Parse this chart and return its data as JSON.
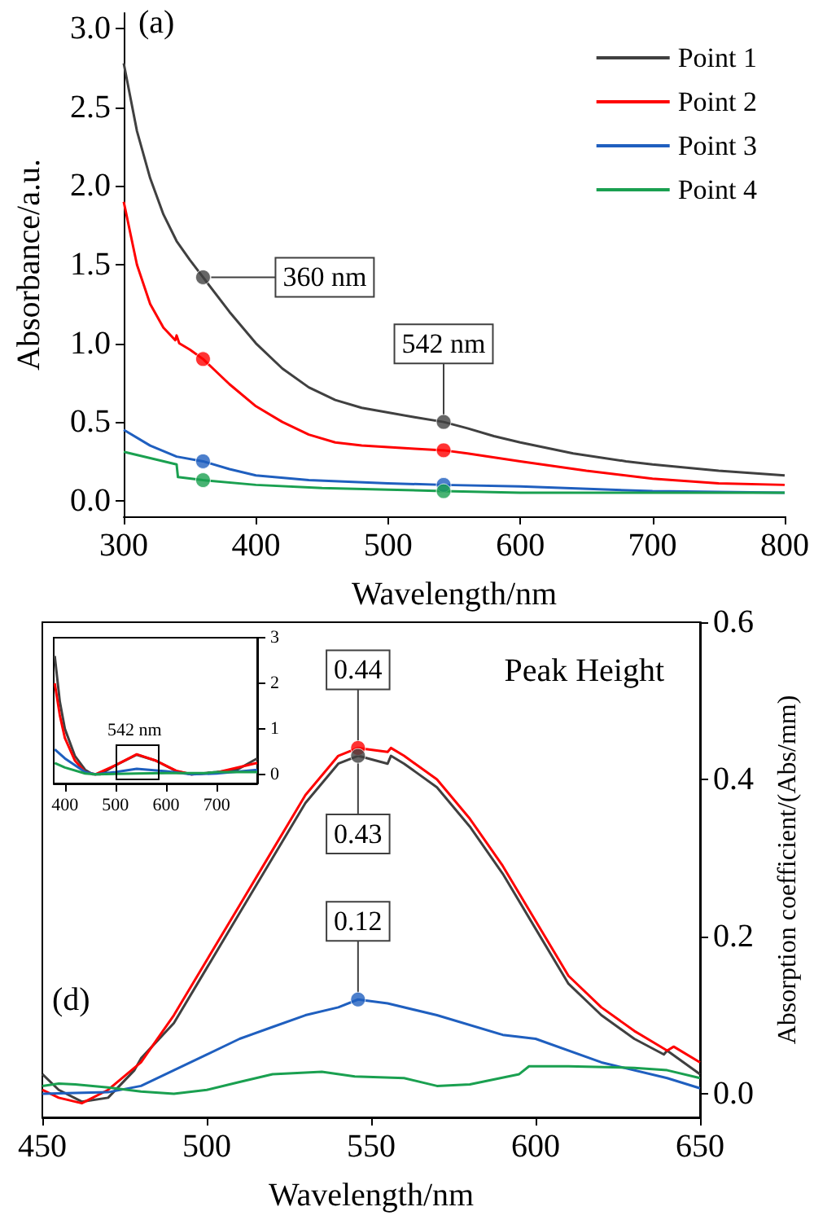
{
  "chart_data": [
    {
      "type": "line",
      "xlabel": "Wavelength/nm",
      "ylabel": "Absorbance/a.u.",
      "xlim": [
        300,
        800
      ],
      "ylim": [
        -0.1,
        3.1
      ],
      "xticks": [
        300,
        400,
        500,
        600,
        700,
        800
      ],
      "yticks": [
        {
          "value": 0,
          "label": "0.0"
        },
        0.5,
        {
          "value": 1,
          "label": "1.0"
        },
        1.5,
        {
          "value": 2,
          "label": "2.0"
        },
        2.5,
        {
          "value": 3,
          "label": "3.0"
        }
      ],
      "legend": "top right",
      "annotations": [
        "(a)",
        {
          "text": "360 nm",
          "x": 360,
          "y": 1.42
        },
        {
          "text": "542 nm",
          "x": 542,
          "y": 0.5
        }
      ],
      "series": [
        {
          "name": "Point 1",
          "color": "#404040",
          "x": [
            300,
            310,
            320,
            330,
            340,
            350,
            360,
            380,
            400,
            420,
            440,
            460,
            480,
            500,
            520,
            542,
            560,
            580,
            600,
            640,
            680,
            700,
            750,
            800
          ],
          "values": [
            2.78,
            2.35,
            2.05,
            1.82,
            1.65,
            1.53,
            1.42,
            1.2,
            1.0,
            0.84,
            0.72,
            0.64,
            0.59,
            0.56,
            0.53,
            0.5,
            0.46,
            0.41,
            0.37,
            0.3,
            0.25,
            0.23,
            0.19,
            0.16
          ]
        },
        {
          "name": "Point 2",
          "color": "#ff0000",
          "x": [
            300,
            310,
            320,
            330,
            339,
            340,
            342,
            350,
            360,
            380,
            400,
            420,
            440,
            460,
            480,
            500,
            520,
            542,
            560,
            600,
            650,
            700,
            750,
            800
          ],
          "values": [
            1.9,
            1.5,
            1.25,
            1.1,
            1.02,
            1.05,
            1.0,
            0.96,
            0.9,
            0.74,
            0.6,
            0.5,
            0.42,
            0.37,
            0.35,
            0.34,
            0.33,
            0.32,
            0.3,
            0.25,
            0.19,
            0.14,
            0.11,
            0.1
          ]
        },
        {
          "name": "Point 3",
          "color": "#1f5fbf",
          "x": [
            300,
            320,
            340,
            360,
            380,
            400,
            440,
            500,
            542,
            600,
            700,
            800
          ],
          "values": [
            0.45,
            0.35,
            0.28,
            0.25,
            0.2,
            0.16,
            0.13,
            0.11,
            0.1,
            0.09,
            0.06,
            0.05
          ]
        },
        {
          "name": "Point 4",
          "color": "#1aa050",
          "x": [
            300,
            320,
            340,
            341,
            360,
            400,
            450,
            500,
            542,
            600,
            700,
            800
          ],
          "values": [
            0.31,
            0.27,
            0.23,
            0.15,
            0.13,
            0.1,
            0.08,
            0.07,
            0.06,
            0.05,
            0.05,
            0.05
          ]
        },
        {
          "type": "scatter",
          "color": "#404040",
          "x": [
            360,
            542
          ],
          "values": [
            1.42,
            0.5
          ]
        },
        {
          "type": "scatter",
          "color": "#ff0000",
          "x": [
            360,
            542
          ],
          "values": [
            0.9,
            0.32
          ]
        },
        {
          "type": "scatter",
          "color": "#1f5fbf",
          "x": [
            360,
            542
          ],
          "values": [
            0.25,
            0.1
          ]
        },
        {
          "type": "scatter",
          "color": "#1aa050",
          "x": [
            360,
            542
          ],
          "values": [
            0.13,
            0.06
          ]
        }
      ]
    },
    {
      "type": "line",
      "xlabel": "Wavelength/nm",
      "ylabel": "Absorption coefficient/(Abs/mm)",
      "xlim": [
        450,
        650
      ],
      "ylim": [
        -0.03,
        0.6
      ],
      "xticks": [
        450,
        500,
        550,
        600,
        650
      ],
      "yticks": [
        {
          "value": 0,
          "label": "0.0"
        },
        0.2,
        0.4,
        0.6
      ],
      "annotations": [
        "Peak Height",
        "(d)",
        {
          "text": "0.44",
          "x": 546,
          "y": 0.44
        },
        {
          "text": "0.43",
          "x": 546,
          "y": 0.43
        },
        {
          "text": "0.12",
          "x": 546,
          "y": 0.12
        }
      ],
      "series": [
        {
          "color": "#404040",
          "x": [
            450,
            455,
            462,
            470,
            478,
            480,
            490,
            500,
            510,
            520,
            530,
            540,
            546,
            555,
            556,
            560,
            570,
            580,
            590,
            600,
            610,
            620,
            630,
            639,
            640,
            650
          ],
          "values": [
            0.025,
            0.005,
            -0.01,
            -0.005,
            0.03,
            0.045,
            0.09,
            0.16,
            0.23,
            0.3,
            0.37,
            0.42,
            0.43,
            0.42,
            0.43,
            0.42,
            0.39,
            0.34,
            0.28,
            0.21,
            0.14,
            0.1,
            0.07,
            0.05,
            0.055,
            0.025
          ]
        },
        {
          "color": "#ff0000",
          "x": [
            450,
            455,
            462,
            470,
            480,
            490,
            500,
            510,
            520,
            530,
            540,
            546,
            555,
            556,
            560,
            570,
            580,
            590,
            600,
            610,
            620,
            630,
            640,
            642,
            650
          ],
          "values": [
            0.005,
            -0.005,
            -0.012,
            0.005,
            0.04,
            0.1,
            0.17,
            0.24,
            0.31,
            0.38,
            0.43,
            0.44,
            0.435,
            0.44,
            0.43,
            0.4,
            0.35,
            0.29,
            0.22,
            0.15,
            0.11,
            0.08,
            0.055,
            0.06,
            0.04
          ]
        },
        {
          "color": "#1f5fbf",
          "x": [
            450,
            470,
            480,
            490,
            500,
            510,
            520,
            530,
            540,
            546,
            555,
            570,
            590,
            600,
            620,
            640,
            650
          ],
          "values": [
            0,
            0.002,
            0.01,
            0.03,
            0.05,
            0.07,
            0.085,
            0.1,
            0.11,
            0.12,
            0.115,
            0.1,
            0.075,
            0.07,
            0.04,
            0.02,
            0.007
          ]
        },
        {
          "color": "#1aa050",
          "x": [
            450,
            455,
            460,
            470,
            480,
            490,
            500,
            510,
            520,
            535,
            545,
            560,
            570,
            580,
            595,
            598,
            610,
            630,
            640,
            650
          ],
          "values": [
            0.01,
            0.013,
            0.012,
            0.008,
            0.003,
            0,
            0.005,
            0.015,
            0.025,
            0.028,
            0.022,
            0.02,
            0.01,
            0.012,
            0.025,
            0.035,
            0.035,
            0.033,
            0.03,
            0.02
          ]
        },
        {
          "type": "scatter",
          "color": "#ff0000",
          "x": [
            546
          ],
          "values": [
            0.44
          ]
        },
        {
          "type": "scatter",
          "color": "#404040",
          "x": [
            546
          ],
          "values": [
            0.43
          ]
        },
        {
          "type": "scatter",
          "color": "#1f5fbf",
          "x": [
            546
          ],
          "values": [
            0.12
          ]
        }
      ]
    },
    {
      "type": "line",
      "xlim": [
        378,
        780
      ],
      "ylim": [
        -0.2,
        3
      ],
      "xticks": [
        400,
        500,
        600,
        700
      ],
      "yticks": [
        0,
        1,
        2,
        3
      ],
      "annotations": [
        "542 nm"
      ],
      "series": [
        {
          "color": "#404040",
          "x": [
            380,
            390,
            400,
            420,
            440,
            455,
            470,
            500,
            542,
            580,
            620,
            650,
            700,
            740,
            780
          ],
          "values": [
            2.6,
            1.6,
            1.0,
            0.4,
            0.1,
            0,
            0,
            0.2,
            0.43,
            0.3,
            0.07,
            0,
            0.05,
            0.1,
            0.35
          ]
        },
        {
          "color": "#ff0000",
          "x": [
            380,
            390,
            400,
            420,
            440,
            460,
            500,
            542,
            580,
            620,
            650,
            700,
            780
          ],
          "values": [
            2.0,
            1.3,
            0.8,
            0.3,
            0.05,
            0,
            0.2,
            0.44,
            0.3,
            0.08,
            0,
            0.04,
            0.25
          ]
        },
        {
          "color": "#1f5fbf",
          "x": [
            380,
            400,
            440,
            460,
            500,
            542,
            600,
            650,
            700,
            780
          ],
          "values": [
            0.55,
            0.35,
            0.05,
            0,
            0.05,
            0.12,
            0.07,
            0,
            0.02,
            0.1
          ]
        },
        {
          "color": "#1aa050",
          "x": [
            380,
            400,
            440,
            460,
            542,
            600,
            680,
            700,
            780
          ],
          "values": [
            0.25,
            0.15,
            0.02,
            0,
            0.02,
            0.03,
            0.03,
            0.05,
            0.05
          ]
        }
      ]
    }
  ]
}
